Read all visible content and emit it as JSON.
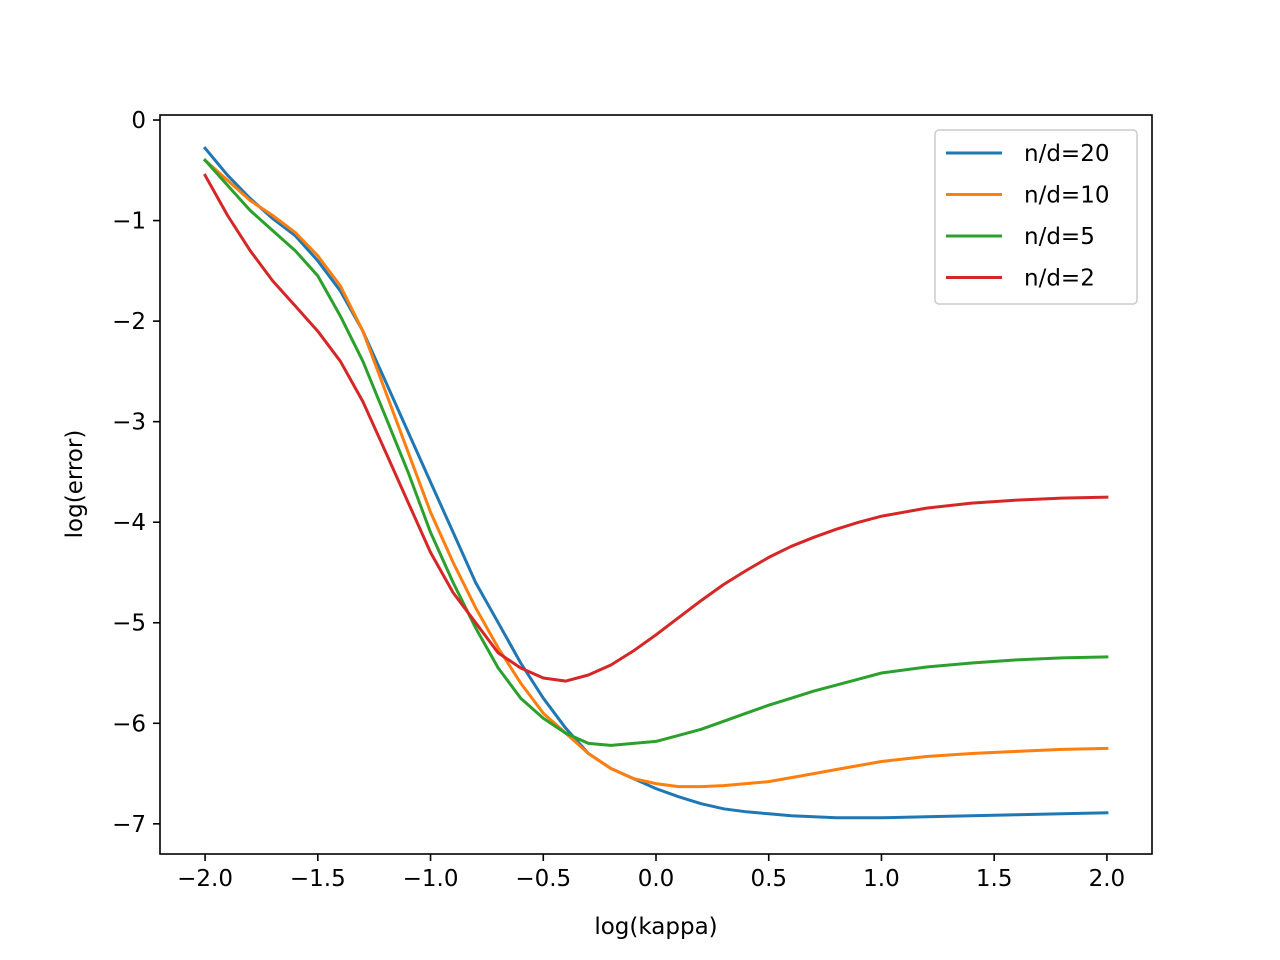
{
  "chart_data": {
    "type": "line",
    "title": "",
    "xlabel": "log(kappa)",
    "ylabel": "log(error)",
    "xlim": [
      -2.2,
      2.2
    ],
    "ylim": [
      -7.3,
      0.05
    ],
    "xticks": [
      -2.0,
      -1.5,
      -1.0,
      -0.5,
      0.0,
      0.5,
      1.0,
      1.5,
      2.0
    ],
    "xtick_labels": [
      "−2.0",
      "−1.5",
      "−1.0",
      "−0.5",
      "0.0",
      "0.5",
      "1.0",
      "1.5",
      "2.0"
    ],
    "yticks": [
      0,
      -1,
      -2,
      -3,
      -4,
      -5,
      -6,
      -7
    ],
    "ytick_labels": [
      "0",
      "−1",
      "−2",
      "−3",
      "−4",
      "−5",
      "−6",
      "−7"
    ],
    "grid": false,
    "legend_position": "top-right",
    "x": [
      -2.0,
      -1.9,
      -1.8,
      -1.7,
      -1.6,
      -1.5,
      -1.4,
      -1.3,
      -1.2,
      -1.1,
      -1.0,
      -0.9,
      -0.8,
      -0.7,
      -0.6,
      -0.5,
      -0.4,
      -0.3,
      -0.2,
      -0.1,
      0.0,
      0.1,
      0.2,
      0.3,
      0.4,
      0.5,
      0.6,
      0.7,
      0.8,
      0.9,
      1.0,
      1.2,
      1.4,
      1.6,
      1.8,
      2.0
    ],
    "series": [
      {
        "name": "n/d=20",
        "color": "#1f77b4",
        "values": [
          -0.28,
          -0.55,
          -0.78,
          -0.98,
          -1.15,
          -1.4,
          -1.7,
          -2.1,
          -2.6,
          -3.1,
          -3.6,
          -4.1,
          -4.6,
          -5.0,
          -5.4,
          -5.75,
          -6.05,
          -6.3,
          -6.45,
          -6.55,
          -6.65,
          -6.73,
          -6.8,
          -6.85,
          -6.88,
          -6.9,
          -6.92,
          -6.93,
          -6.94,
          -6.94,
          -6.94,
          -6.93,
          -6.92,
          -6.91,
          -6.9,
          -6.89
        ]
      },
      {
        "name": "n/d=10",
        "color": "#ff7f0e",
        "values": [
          -0.4,
          -0.6,
          -0.8,
          -0.95,
          -1.12,
          -1.35,
          -1.65,
          -2.1,
          -2.7,
          -3.3,
          -3.9,
          -4.4,
          -4.85,
          -5.25,
          -5.6,
          -5.9,
          -6.1,
          -6.3,
          -6.45,
          -6.55,
          -6.6,
          -6.63,
          -6.63,
          -6.62,
          -6.6,
          -6.58,
          -6.54,
          -6.5,
          -6.46,
          -6.42,
          -6.38,
          -6.33,
          -6.3,
          -6.28,
          -6.26,
          -6.25
        ]
      },
      {
        "name": "n/d=5",
        "color": "#2ca02c",
        "values": [
          -0.4,
          -0.65,
          -0.9,
          -1.1,
          -1.3,
          -1.55,
          -1.95,
          -2.4,
          -2.95,
          -3.5,
          -4.1,
          -4.6,
          -5.05,
          -5.45,
          -5.75,
          -5.95,
          -6.1,
          -6.2,
          -6.22,
          -6.2,
          -6.18,
          -6.12,
          -6.06,
          -5.98,
          -5.9,
          -5.82,
          -5.75,
          -5.68,
          -5.62,
          -5.56,
          -5.5,
          -5.44,
          -5.4,
          -5.37,
          -5.35,
          -5.34
        ]
      },
      {
        "name": "n/d=2",
        "color": "#d62728",
        "values": [
          -0.55,
          -0.95,
          -1.3,
          -1.6,
          -1.85,
          -2.1,
          -2.4,
          -2.8,
          -3.3,
          -3.8,
          -4.3,
          -4.7,
          -5.0,
          -5.3,
          -5.45,
          -5.55,
          -5.58,
          -5.52,
          -5.42,
          -5.28,
          -5.12,
          -4.95,
          -4.78,
          -4.62,
          -4.48,
          -4.35,
          -4.24,
          -4.15,
          -4.07,
          -4.0,
          -3.94,
          -3.86,
          -3.81,
          -3.78,
          -3.76,
          -3.75
        ]
      }
    ]
  }
}
